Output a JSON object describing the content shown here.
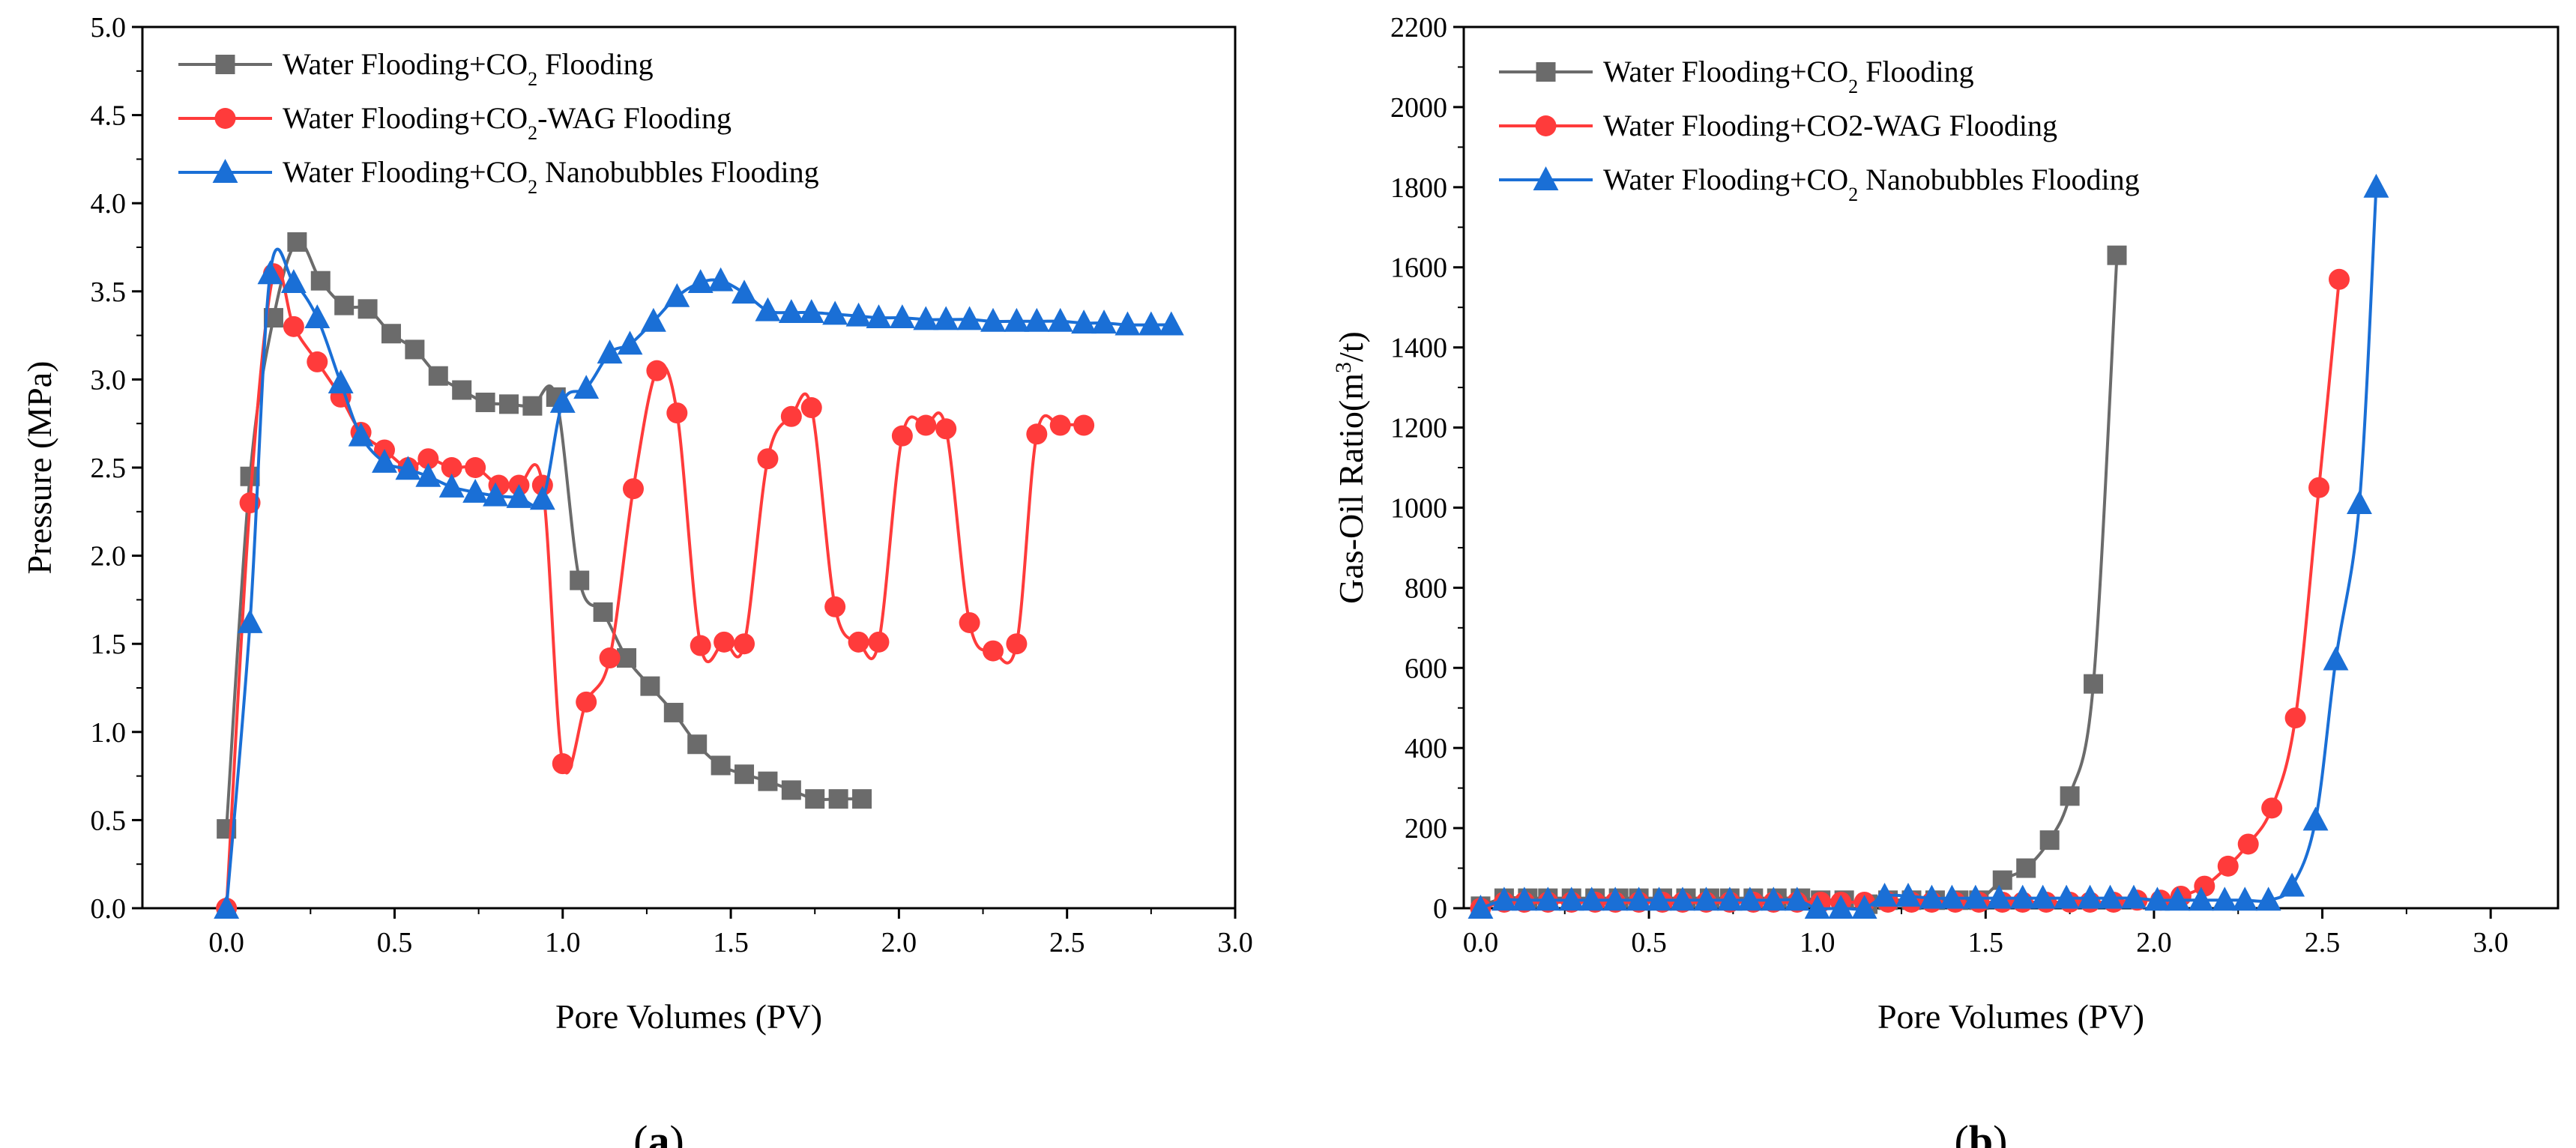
{
  "chart_data": [
    {
      "type": "line",
      "panel_label": "(a)",
      "xlabel": "Pore Volumes (PV)",
      "ylabel": "Pressure (MPa)",
      "xlim": [
        -0.25,
        3.0
      ],
      "ylim": [
        0.0,
        5.0
      ],
      "xticks": [
        "0.0",
        "0.5",
        "1.0",
        "1.5",
        "2.0",
        "2.5",
        "3.0"
      ],
      "yticks": [
        "0.0",
        "0.5",
        "1.0",
        "1.5",
        "2.0",
        "2.5",
        "3.0",
        "3.5",
        "4.0",
        "4.5",
        "5.0"
      ],
      "legend_position": "top-left",
      "series": [
        {
          "name": "Water Flooding+CO₂ Flooding",
          "color": "#6b6b6b",
          "marker": "square",
          "x": [
            0.0,
            0.07,
            0.14,
            0.21,
            0.28,
            0.35,
            0.42,
            0.49,
            0.56,
            0.63,
            0.7,
            0.77,
            0.84,
            0.91,
            0.98,
            1.05,
            1.12,
            1.19,
            1.26,
            1.33,
            1.4,
            1.47,
            1.54,
            1.61,
            1.68,
            1.75,
            1.82,
            1.89
          ],
          "values": [
            0.45,
            2.45,
            3.35,
            3.78,
            3.56,
            3.42,
            3.4,
            3.26,
            3.17,
            3.02,
            2.94,
            2.87,
            2.86,
            2.85,
            2.9,
            1.86,
            1.68,
            1.42,
            1.26,
            1.11,
            0.93,
            0.81,
            0.76,
            0.72,
            0.67,
            0.62,
            0.62,
            0.62
          ]
        },
        {
          "name": "Water Flooding+CO₂-WAG Flooding",
          "color": "#ff3b3b",
          "marker": "circle",
          "x": [
            0.0,
            0.07,
            0.14,
            0.2,
            0.27,
            0.34,
            0.4,
            0.47,
            0.54,
            0.6,
            0.67,
            0.74,
            0.81,
            0.87,
            0.94,
            1.0,
            1.07,
            1.14,
            1.21,
            1.28,
            1.34,
            1.41,
            1.48,
            1.54,
            1.61,
            1.68,
            1.74,
            1.81,
            1.88,
            1.94,
            2.01,
            2.08,
            2.14,
            2.21,
            2.28,
            2.35,
            2.41,
            2.48,
            2.55
          ],
          "values": [
            0.0,
            2.3,
            3.6,
            3.3,
            3.1,
            2.9,
            2.7,
            2.6,
            2.5,
            2.55,
            2.5,
            2.5,
            2.4,
            2.4,
            2.4,
            0.82,
            1.17,
            1.42,
            2.38,
            3.05,
            2.81,
            1.49,
            1.51,
            1.5,
            2.55,
            2.79,
            2.84,
            1.71,
            1.51,
            1.51,
            2.68,
            2.74,
            2.72,
            1.62,
            1.46,
            1.5,
            2.69,
            2.74,
            2.74
          ]
        },
        {
          "name": "Water Flooding+CO₂ Nanobubbles Flooding",
          "color": "#1a6fd6",
          "marker": "triangle",
          "x": [
            0.0,
            0.07,
            0.13,
            0.2,
            0.27,
            0.34,
            0.4,
            0.47,
            0.54,
            0.6,
            0.67,
            0.74,
            0.8,
            0.87,
            0.94,
            1.0,
            1.07,
            1.14,
            1.2,
            1.27,
            1.34,
            1.41,
            1.47,
            1.54,
            1.61,
            1.68,
            1.74,
            1.81,
            1.88,
            1.94,
            2.01,
            2.08,
            2.14,
            2.21,
            2.28,
            2.35,
            2.41,
            2.48,
            2.55,
            2.61,
            2.68,
            2.75,
            2.81
          ],
          "values": [
            0.0,
            1.62,
            3.6,
            3.55,
            3.35,
            2.98,
            2.68,
            2.53,
            2.49,
            2.45,
            2.39,
            2.36,
            2.34,
            2.33,
            2.32,
            2.87,
            2.95,
            3.15,
            3.2,
            3.33,
            3.47,
            3.55,
            3.56,
            3.49,
            3.39,
            3.38,
            3.38,
            3.37,
            3.36,
            3.35,
            3.35,
            3.34,
            3.34,
            3.34,
            3.33,
            3.33,
            3.33,
            3.33,
            3.32,
            3.32,
            3.31,
            3.31,
            3.31
          ]
        }
      ]
    },
    {
      "type": "line",
      "panel_label": "(b)",
      "xlabel": "Pore Volumes (PV)",
      "ylabel": "Gas-Oil Ratio(m³/t)",
      "xlim": [
        -0.05,
        3.2
      ],
      "ylim": [
        0,
        2200
      ],
      "xticks": [
        "0.0",
        "0.5",
        "1.0",
        "1.5",
        "2.0",
        "2.5",
        "3.0"
      ],
      "yticks": [
        "0",
        "200",
        "400",
        "600",
        "800",
        "1000",
        "1200",
        "1400",
        "1600",
        "1800",
        "2000",
        "2200"
      ],
      "legend_position": "top-left",
      "series": [
        {
          "name": "Water Flooding+CO₂ Flooding",
          "color": "#6b6b6b",
          "marker": "square",
          "x": [
            0.0,
            0.07,
            0.14,
            0.2,
            0.27,
            0.34,
            0.41,
            0.47,
            0.54,
            0.61,
            0.68,
            0.74,
            0.81,
            0.88,
            0.95,
            1.01,
            1.08,
            1.15,
            1.21,
            1.28,
            1.35,
            1.42,
            1.48,
            1.55,
            1.62,
            1.69,
            1.75,
            1.82,
            1.89
          ],
          "values": [
            5,
            25,
            25,
            25,
            25,
            25,
            25,
            25,
            25,
            25,
            25,
            25,
            25,
            25,
            25,
            20,
            20,
            10,
            20,
            20,
            20,
            20,
            20,
            70,
            100,
            170,
            280,
            560,
            1630
          ]
        },
        {
          "name": "Water Flooding+CO2-WAG Flooding",
          "color": "#ff3b3b",
          "marker": "circle",
          "x": [
            0.0,
            0.07,
            0.13,
            0.2,
            0.27,
            0.34,
            0.4,
            0.47,
            0.54,
            0.6,
            0.67,
            0.74,
            0.81,
            0.87,
            0.94,
            1.01,
            1.07,
            1.14,
            1.21,
            1.28,
            1.34,
            1.41,
            1.48,
            1.55,
            1.61,
            1.68,
            1.75,
            1.81,
            1.88,
            1.95,
            2.02,
            2.08,
            2.15,
            2.22,
            2.28,
            2.35,
            2.42,
            2.49,
            2.55
          ],
          "values": [
            0,
            15,
            15,
            15,
            15,
            15,
            15,
            15,
            15,
            15,
            15,
            15,
            15,
            15,
            15,
            15,
            15,
            15,
            15,
            15,
            15,
            15,
            15,
            15,
            15,
            15,
            15,
            15,
            15,
            20,
            20,
            30,
            55,
            105,
            160,
            250,
            475,
            1050,
            1570
          ]
        },
        {
          "name": "Water Flooding+CO₂ Nanobubbles Flooding",
          "color": "#1a6fd6",
          "marker": "triangle",
          "x": [
            0.0,
            0.07,
            0.13,
            0.2,
            0.27,
            0.33,
            0.4,
            0.47,
            0.53,
            0.6,
            0.67,
            0.74,
            0.8,
            0.87,
            0.94,
            1.0,
            1.07,
            1.14,
            1.2,
            1.27,
            1.34,
            1.4,
            1.47,
            1.54,
            1.61,
            1.67,
            1.74,
            1.81,
            1.87,
            1.94,
            2.01,
            2.07,
            2.14,
            2.21,
            2.27,
            2.34,
            2.41,
            2.48,
            2.54,
            2.61,
            2.66
          ],
          "values": [
            0,
            20,
            20,
            20,
            20,
            20,
            20,
            20,
            20,
            20,
            20,
            20,
            20,
            20,
            20,
            0,
            0,
            0,
            30,
            30,
            25,
            25,
            25,
            25,
            25,
            25,
            25,
            25,
            25,
            25,
            20,
            20,
            20,
            20,
            20,
            20,
            55,
            220,
            620,
            1010,
            1800
          ]
        }
      ]
    }
  ]
}
